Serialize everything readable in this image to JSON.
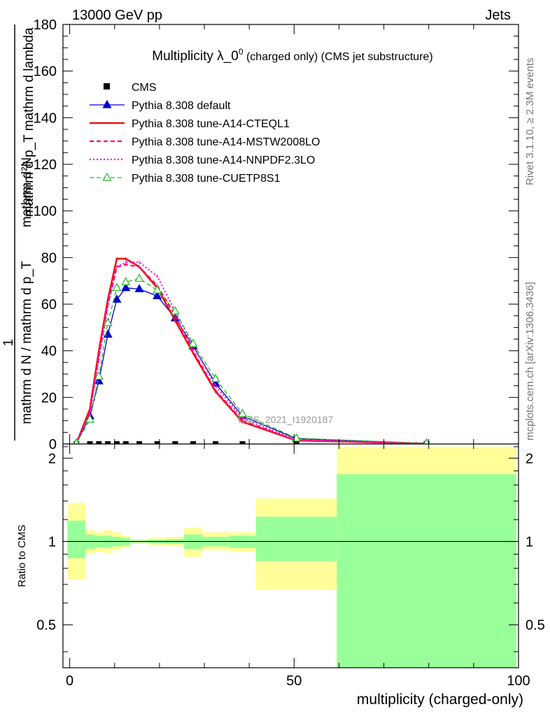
{
  "header": {
    "left": "13000 GeV pp",
    "right": "Jets"
  },
  "side_labels": {
    "rivet": "Rivet 3.1.10, ≥ 2.3M events",
    "mcplots": "mcplots.cern.ch [arXiv:1306.3436]"
  },
  "watermark": "CMS_2021_I1920187",
  "colors": {
    "cms": "#000000",
    "default": "#0000cc",
    "cteql1": "#ee1111",
    "mstw": "#ff0077",
    "nnpdf": "#ff11cc",
    "cuetp8s1": "#22bb22",
    "band_outer": "#ffff99",
    "band_inner": "#99ff99"
  },
  "chart_data": [
    {
      "type": "line",
      "title": "Multiplicity λ_0",
      "title_sup": "0",
      "title_suffix": " (charged only) (CMS jet substructure)",
      "ylabel_numerator": "mathrm d²N",
      "ylabel_denominator": "mathrm d p_T mathrm d lambda",
      "ylabel_prefix_num": "1",
      "ylabel_prefix_den": "mathrm d N / mathrm d p_T",
      "xlim": [
        -1.5,
        100
      ],
      "ylim": [
        0,
        180
      ],
      "x_ticks": [
        0,
        50,
        100
      ],
      "y_ticks": [
        0,
        20,
        40,
        60,
        80,
        100,
        120,
        140,
        160,
        180
      ],
      "legend_position": "top-left",
      "series": [
        {
          "key": "cms",
          "name": "CMS",
          "style": "markers",
          "x": [
            1.5,
            4.5,
            6.5,
            8.5,
            10.5,
            12.5,
            15.5,
            19.5,
            23.5,
            27.5,
            32.5,
            38.5,
            50.5,
            79.5
          ],
          "values": [
            0,
            0,
            0,
            0,
            0,
            0,
            0,
            0,
            0,
            0,
            0,
            0,
            0,
            0
          ]
        },
        {
          "key": "default",
          "name": "Pythia 8.308 default",
          "style": "solid-triangle",
          "x": [
            1.5,
            4.5,
            6.5,
            8.5,
            10.5,
            12.5,
            15.5,
            19.5,
            23.5,
            27.5,
            32.5,
            38.5,
            50.5,
            79.5
          ],
          "values": [
            0.3,
            12,
            27,
            47,
            62,
            67,
            66.5,
            63.5,
            54,
            42,
            26,
            12,
            2.3,
            0.3
          ]
        },
        {
          "key": "cteql1",
          "name": "Pythia 8.308 tune-A14-CTEQL1",
          "style": "solid-thick",
          "x": [
            1.5,
            4.5,
            6.5,
            8.5,
            10.5,
            12.5,
            15.5,
            19.5,
            23.5,
            27.5,
            32.5,
            38.5,
            50.5,
            79.5
          ],
          "values": [
            0.3,
            15,
            40,
            62,
            79.5,
            79.5,
            76,
            67,
            53,
            39,
            22.5,
            9.5,
            1.5,
            0.2
          ]
        },
        {
          "key": "mstw",
          "name": "Pythia 8.308 tune-A14-MSTW2008LO",
          "style": "dashed",
          "x": [
            1.5,
            4.5,
            6.5,
            8.5,
            10.5,
            12.5,
            15.5,
            19.5,
            23.5,
            27.5,
            32.5,
            38.5,
            50.5,
            79.5
          ],
          "values": [
            0.3,
            14,
            38,
            60,
            76,
            77,
            76,
            68,
            55,
            40,
            23,
            10,
            1.6,
            0.2
          ]
        },
        {
          "key": "nnpdf",
          "name": "Pythia 8.308 tune-A14-NNPDF2.3LO",
          "style": "dotted",
          "x": [
            1.5,
            4.5,
            6.5,
            8.5,
            10.5,
            12.5,
            15.5,
            19.5,
            23.5,
            27.5,
            32.5,
            38.5,
            50.5,
            79.5
          ],
          "values": [
            0.3,
            13,
            36,
            59,
            76,
            78,
            78,
            72,
            57,
            42,
            25,
            11,
            1.8,
            0.2
          ]
        },
        {
          "key": "cuetp8s1",
          "name": "Pythia 8.308 tune-CUETP8S1",
          "style": "dashed-open-triangle",
          "x": [
            1.5,
            4.5,
            6.5,
            8.5,
            10.5,
            12.5,
            15.5,
            19.5,
            23.5,
            27.5,
            32.5,
            38.5,
            50.5,
            79.5
          ],
          "values": [
            0.3,
            10.5,
            29,
            52,
            67,
            69.5,
            71,
            66,
            57,
            43,
            28,
            13,
            2.5,
            0.3
          ]
        }
      ]
    },
    {
      "type": "area",
      "ylabel": "Ratio to CMS",
      "xlabel": "multiplicity (charged-only)",
      "xlim": [
        -1.5,
        100
      ],
      "ylim": [
        0.35,
        2.25
      ],
      "x_ticks": [
        0,
        50,
        100
      ],
      "y_ticks": [
        0.5,
        1,
        2
      ],
      "bins": [
        {
          "lo": -0.5,
          "hi": 3.5,
          "outer_lo": 0.73,
          "outer_hi": 1.38,
          "inner_lo": 0.87,
          "inner_hi": 1.19
        },
        {
          "lo": 3.5,
          "hi": 5.5,
          "outer_lo": 0.9,
          "outer_hi": 1.1,
          "inner_lo": 0.94,
          "inner_hi": 1.06
        },
        {
          "lo": 5.5,
          "hi": 7.5,
          "outer_lo": 0.92,
          "outer_hi": 1.08,
          "inner_lo": 0.95,
          "inner_hi": 1.05
        },
        {
          "lo": 7.5,
          "hi": 9.5,
          "outer_lo": 0.91,
          "outer_hi": 1.1,
          "inner_lo": 0.95,
          "inner_hi": 1.05
        },
        {
          "lo": 9.5,
          "hi": 11.5,
          "outer_lo": 0.93,
          "outer_hi": 1.08,
          "inner_lo": 0.96,
          "inner_hi": 1.04
        },
        {
          "lo": 11.5,
          "hi": 13.5,
          "outer_lo": 0.95,
          "outer_hi": 1.05,
          "inner_lo": 0.97,
          "inner_hi": 1.03
        },
        {
          "lo": 13.5,
          "hi": 17.5,
          "outer_lo": 0.98,
          "outer_hi": 1.02,
          "inner_lo": 0.99,
          "inner_hi": 1.01
        },
        {
          "lo": 17.5,
          "hi": 21.5,
          "outer_lo": 0.97,
          "outer_hi": 1.03,
          "inner_lo": 0.985,
          "inner_hi": 1.015
        },
        {
          "lo": 21.5,
          "hi": 25.5,
          "outer_lo": 0.96,
          "outer_hi": 1.04,
          "inner_lo": 0.98,
          "inner_hi": 1.02
        },
        {
          "lo": 25.5,
          "hi": 29.5,
          "outer_lo": 0.88,
          "outer_hi": 1.12,
          "inner_lo": 0.94,
          "inner_hi": 1.06
        },
        {
          "lo": 29.5,
          "hi": 35.5,
          "outer_lo": 0.93,
          "outer_hi": 1.08,
          "inner_lo": 0.96,
          "inner_hi": 1.04
        },
        {
          "lo": 35.5,
          "hi": 41.5,
          "outer_lo": 0.92,
          "outer_hi": 1.08,
          "inner_lo": 0.95,
          "inner_hi": 1.05
        },
        {
          "lo": 41.5,
          "hi": 59.5,
          "outer_lo": 0.67,
          "outer_hi": 1.43,
          "inner_lo": 0.85,
          "inner_hi": 1.23
        },
        {
          "lo": 59.5,
          "hi": 99.5,
          "outer_lo": 0.35,
          "outer_hi": 2.2,
          "inner_lo": 0.35,
          "inner_hi": 1.75
        }
      ]
    }
  ]
}
